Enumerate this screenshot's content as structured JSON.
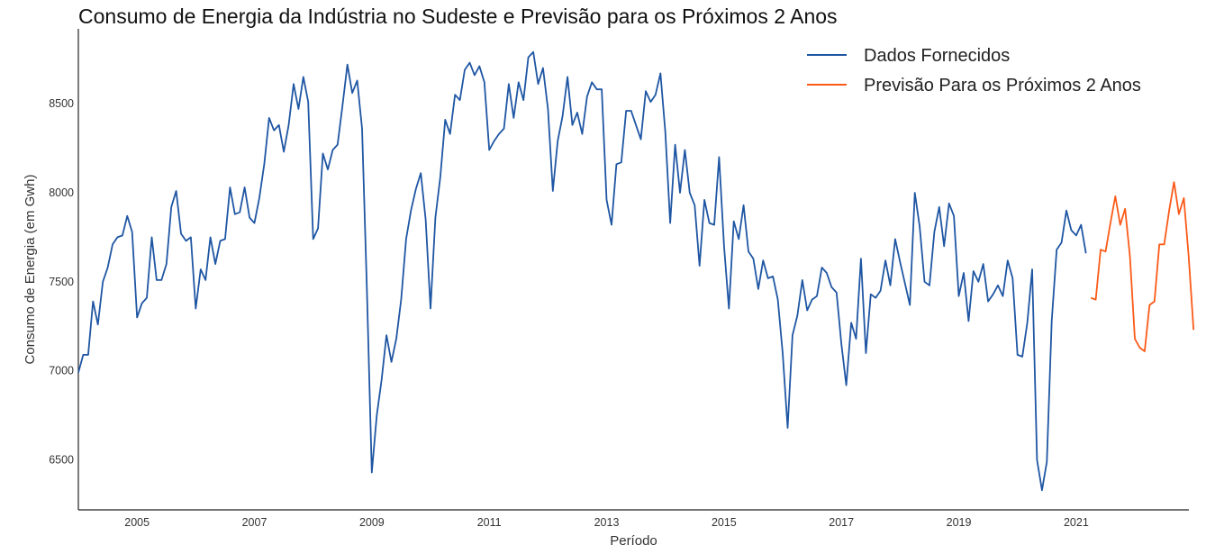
{
  "chart_data": {
    "type": "line",
    "title": "Consumo de Energia da Indústria no Sudeste e Previsão para os Próximos 2 Anos",
    "xlabel": "Período",
    "ylabel": "Consumo de Energia (em Gwh)",
    "xlim": [
      2004.0,
      2022.92
    ],
    "ylim": [
      6220,
      8920
    ],
    "x_ticks": [
      2005,
      2007,
      2009,
      2011,
      2013,
      2015,
      2017,
      2019,
      2021
    ],
    "y_ticks": [
      6500,
      7000,
      7500,
      8000,
      8500
    ],
    "grid": false,
    "legend_position": "top-right",
    "series": [
      {
        "name": "Dados Fornecidos",
        "color": "#1f56a3",
        "x_start": 2004.0,
        "x_step_months": 1,
        "values": [
          6990,
          7090,
          7090,
          7390,
          7260,
          7500,
          7580,
          7710,
          7750,
          7760,
          7870,
          7780,
          7300,
          7380,
          7410,
          7750,
          7510,
          7510,
          7600,
          7920,
          8010,
          7770,
          7730,
          7750,
          7350,
          7570,
          7510,
          7750,
          7600,
          7730,
          7740,
          8030,
          7880,
          7890,
          8030,
          7860,
          7830,
          7970,
          8160,
          8420,
          8350,
          8380,
          8230,
          8380,
          8610,
          8470,
          8650,
          8510,
          7740,
          7800,
          8220,
          8130,
          8240,
          8270,
          8490,
          8720,
          8560,
          8630,
          8360,
          7450,
          6430,
          6750,
          6950,
          7200,
          7050,
          7180,
          7400,
          7740,
          7900,
          8020,
          8110,
          7850,
          7350,
          7860,
          8090,
          8410,
          8330,
          8550,
          8520,
          8690,
          8730,
          8660,
          8710,
          8620,
          8240,
          8290,
          8330,
          8360,
          8610,
          8420,
          8620,
          8520,
          8760,
          8790,
          8610,
          8700,
          8470,
          8010,
          8290,
          8430,
          8650,
          8380,
          8450,
          8330,
          8540,
          8620,
          8580,
          8580,
          7960,
          7820,
          8160,
          8170,
          8460,
          8460,
          8380,
          8300,
          8570,
          8510,
          8550,
          8670,
          8340,
          7830,
          8270,
          8000,
          8240,
          8000,
          7930,
          7590,
          7960,
          7830,
          7820,
          8200,
          7700,
          7350,
          7840,
          7740,
          7930,
          7670,
          7630,
          7460,
          7620,
          7520,
          7530,
          7400,
          7100,
          6680,
          7200,
          7310,
          7510,
          7340,
          7400,
          7420,
          7580,
          7550,
          7470,
          7440,
          7150,
          6920,
          7270,
          7180,
          7630,
          7100,
          7430,
          7410,
          7450,
          7620,
          7480,
          7740,
          7610,
          7490,
          7370,
          8000,
          7810,
          7500,
          7480,
          7780,
          7920,
          7700,
          7940,
          7870,
          7420,
          7550,
          7280,
          7560,
          7500,
          7600,
          7390,
          7430,
          7480,
          7420,
          7620,
          7520,
          7090,
          7080,
          7270,
          7570,
          6500,
          6330,
          6490,
          7280,
          7680,
          7720,
          7900,
          7790,
          7760,
          7820,
          7660
        ]
      },
      {
        "name": "Previsão Para os Próximos 2 Anos",
        "color": "#fa5a18",
        "x_start": 2021.25,
        "x_step_months": 1,
        "values": [
          7410,
          7400,
          7680,
          7670,
          7830,
          7980,
          7820,
          7910,
          7640,
          7180,
          7130,
          7110,
          7370,
          7390,
          7710,
          7710,
          7900,
          8060,
          7880,
          7970,
          7640,
          7230
        ]
      }
    ]
  }
}
